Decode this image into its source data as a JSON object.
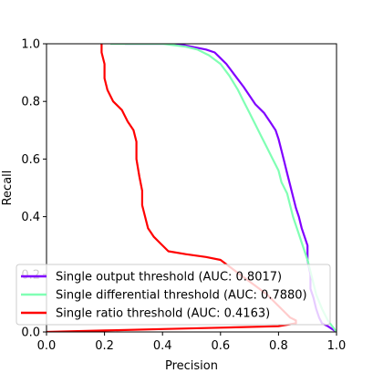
{
  "chart_data": {
    "type": "line",
    "xlabel": "Precision",
    "ylabel": "Recall",
    "xlim": [
      0.0,
      1.0
    ],
    "ylim": [
      0.0,
      1.0
    ],
    "xticks": [
      "0.0",
      "0.2",
      "0.4",
      "0.6",
      "0.8",
      "1.0"
    ],
    "yticks": [
      "0.0",
      "0.2",
      "0.4",
      "0.6",
      "0.8",
      "1.0"
    ],
    "grid": false,
    "legend_position": "lower-left",
    "series": [
      {
        "name": "Single output threshold (AUC: 0.8017)",
        "color": "#8000ff",
        "x": [
          0.27,
          0.45,
          0.5,
          0.55,
          0.58,
          0.6,
          0.62,
          0.65,
          0.68,
          0.7,
          0.72,
          0.75,
          0.77,
          0.79,
          0.8,
          0.81,
          0.82,
          0.83,
          0.84,
          0.85,
          0.86,
          0.87,
          0.88,
          0.89,
          0.9,
          0.9,
          0.91,
          0.91,
          0.92,
          0.93,
          0.94,
          0.95,
          0.97,
          1.0
        ],
        "y": [
          1.0,
          1.0,
          0.99,
          0.98,
          0.97,
          0.95,
          0.93,
          0.89,
          0.85,
          0.82,
          0.79,
          0.76,
          0.73,
          0.7,
          0.67,
          0.63,
          0.59,
          0.55,
          0.51,
          0.47,
          0.43,
          0.4,
          0.36,
          0.33,
          0.3,
          0.25,
          0.2,
          0.15,
          0.12,
          0.08,
          0.05,
          0.03,
          0.02,
          0.0
        ]
      },
      {
        "name": "Single differential threshold (AUC: 0.7880)",
        "color": "#80ffb4",
        "x": [
          0.22,
          0.4,
          0.48,
          0.52,
          0.56,
          0.6,
          0.63,
          0.66,
          0.68,
          0.7,
          0.72,
          0.74,
          0.76,
          0.78,
          0.8,
          0.81,
          0.83,
          0.84,
          0.85,
          0.86,
          0.87,
          0.88,
          0.89,
          0.9,
          0.91,
          0.92,
          0.93,
          0.95,
          0.97,
          1.0
        ],
        "y": [
          1.0,
          1.0,
          0.99,
          0.98,
          0.96,
          0.93,
          0.89,
          0.84,
          0.8,
          0.76,
          0.72,
          0.68,
          0.64,
          0.6,
          0.56,
          0.52,
          0.48,
          0.44,
          0.4,
          0.37,
          0.34,
          0.31,
          0.28,
          0.25,
          0.21,
          0.17,
          0.13,
          0.08,
          0.04,
          0.0
        ]
      },
      {
        "name": "Single ratio threshold (AUC: 0.4163)",
        "color": "#ff0000",
        "x": [
          0.19,
          0.19,
          0.2,
          0.2,
          0.21,
          0.23,
          0.26,
          0.28,
          0.3,
          0.31,
          0.31,
          0.32,
          0.33,
          0.33,
          0.34,
          0.35,
          0.37,
          0.39,
          0.42,
          0.48,
          0.55,
          0.6,
          0.64,
          0.68,
          0.72,
          0.76,
          0.79,
          0.82,
          0.84,
          0.86,
          0.86,
          0.8,
          0.6,
          0.4,
          0.2,
          0.0
        ],
        "y": [
          1.0,
          0.97,
          0.93,
          0.88,
          0.84,
          0.8,
          0.77,
          0.73,
          0.7,
          0.66,
          0.6,
          0.54,
          0.49,
          0.44,
          0.4,
          0.36,
          0.33,
          0.31,
          0.28,
          0.27,
          0.26,
          0.25,
          0.22,
          0.19,
          0.16,
          0.13,
          0.1,
          0.07,
          0.05,
          0.04,
          0.03,
          0.02,
          0.015,
          0.01,
          0.005,
          0.0
        ]
      }
    ]
  }
}
